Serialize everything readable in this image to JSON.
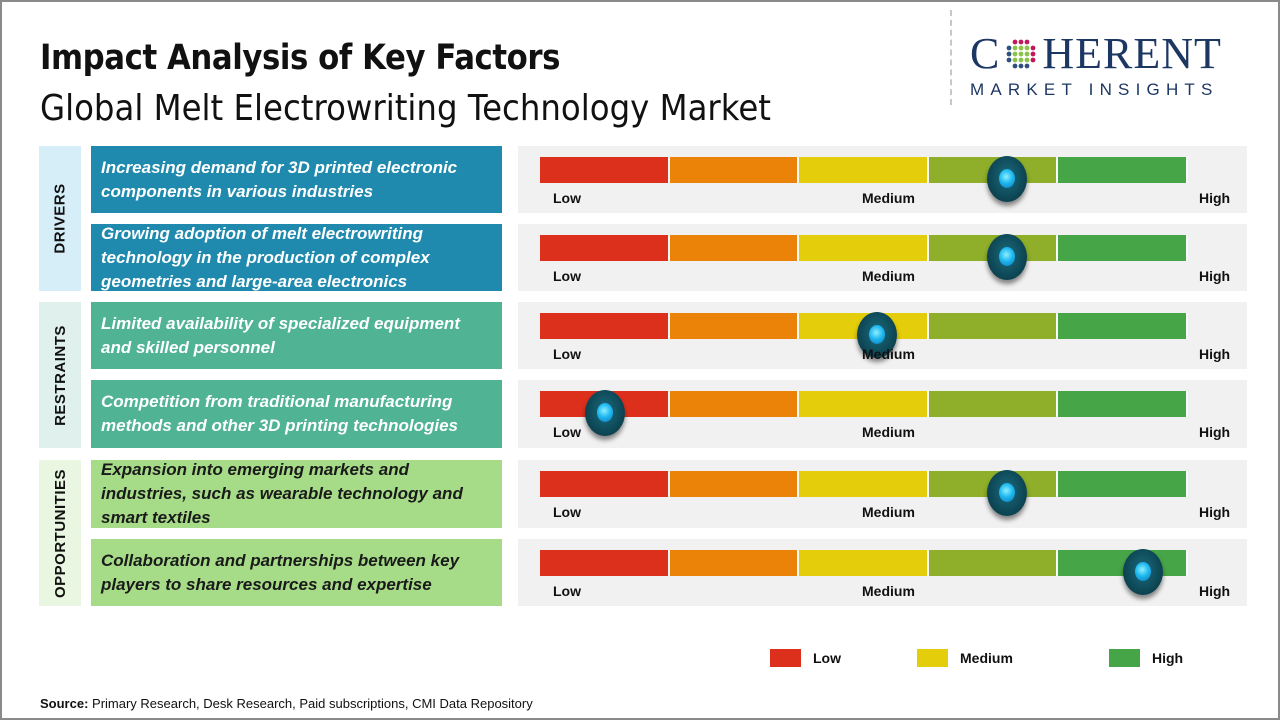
{
  "header": {
    "title": "Impact Analysis of Key Factors",
    "subtitle": "Global Melt Electrowriting Technology Market"
  },
  "logo": {
    "name_prefix": "C",
    "name_suffix": "HERENT",
    "tagline": "MARKET INSIGHTS"
  },
  "colors": {
    "low": "#dc2f1c",
    "low_mid": "#eb8308",
    "medium": "#e4cd0a",
    "mid_high": "#8fae2a",
    "high": "#46a546",
    "drivers_panel": "#1f8aad",
    "restraints_panel": "#4fb394",
    "opportunities_panel": "#a6dc88"
  },
  "categories": [
    {
      "name": "DRIVERS",
      "bg": "#d6eef8"
    },
    {
      "name": "RESTRAINTS",
      "bg": "#e0f0ec"
    },
    {
      "name": "OPPORTUNITIES",
      "bg": "#e9f6e2"
    }
  ],
  "scale_labels": {
    "low": "Low",
    "medium": "Medium",
    "high": "High"
  },
  "chart_data": {
    "type": "table",
    "title": "Impact Analysis of Key Factors",
    "scale": {
      "min": 0,
      "max": 1,
      "labels": [
        "Low",
        "Medium",
        "High"
      ],
      "segments": 5
    },
    "rows": [
      {
        "category": "DRIVERS",
        "factor": "Increasing demand for 3D printed electronic components in various industries",
        "impact": 0.72
      },
      {
        "category": "DRIVERS",
        "factor": "Growing adoption of melt electrowriting technology in the production of complex geometries and large-area electronics",
        "impact": 0.72
      },
      {
        "category": "RESTRAINTS",
        "factor": "Limited availability of specialized equipment and skilled personnel",
        "impact": 0.52
      },
      {
        "category": "RESTRAINTS",
        "factor": "Competition from traditional manufacturing methods and other 3D printing technologies",
        "impact": 0.1
      },
      {
        "category": "OPPORTUNITIES",
        "factor": "Expansion into emerging markets and industries, such as wearable technology and smart textiles",
        "impact": 0.72
      },
      {
        "category": "OPPORTUNITIES",
        "factor": "Collaboration and partnerships between key players to share resources and expertise",
        "impact": 0.93
      }
    ],
    "legend": [
      {
        "label": "Low",
        "color": "#dc2f1c"
      },
      {
        "label": "Medium",
        "color": "#e4cd0a"
      },
      {
        "label": "High",
        "color": "#46a546"
      }
    ],
    "legend_position": "bottom-right"
  },
  "footer": {
    "source_label": "Source:",
    "source_text": " Primary Research, Desk Research, Paid subscriptions, CMI Data Repository"
  }
}
